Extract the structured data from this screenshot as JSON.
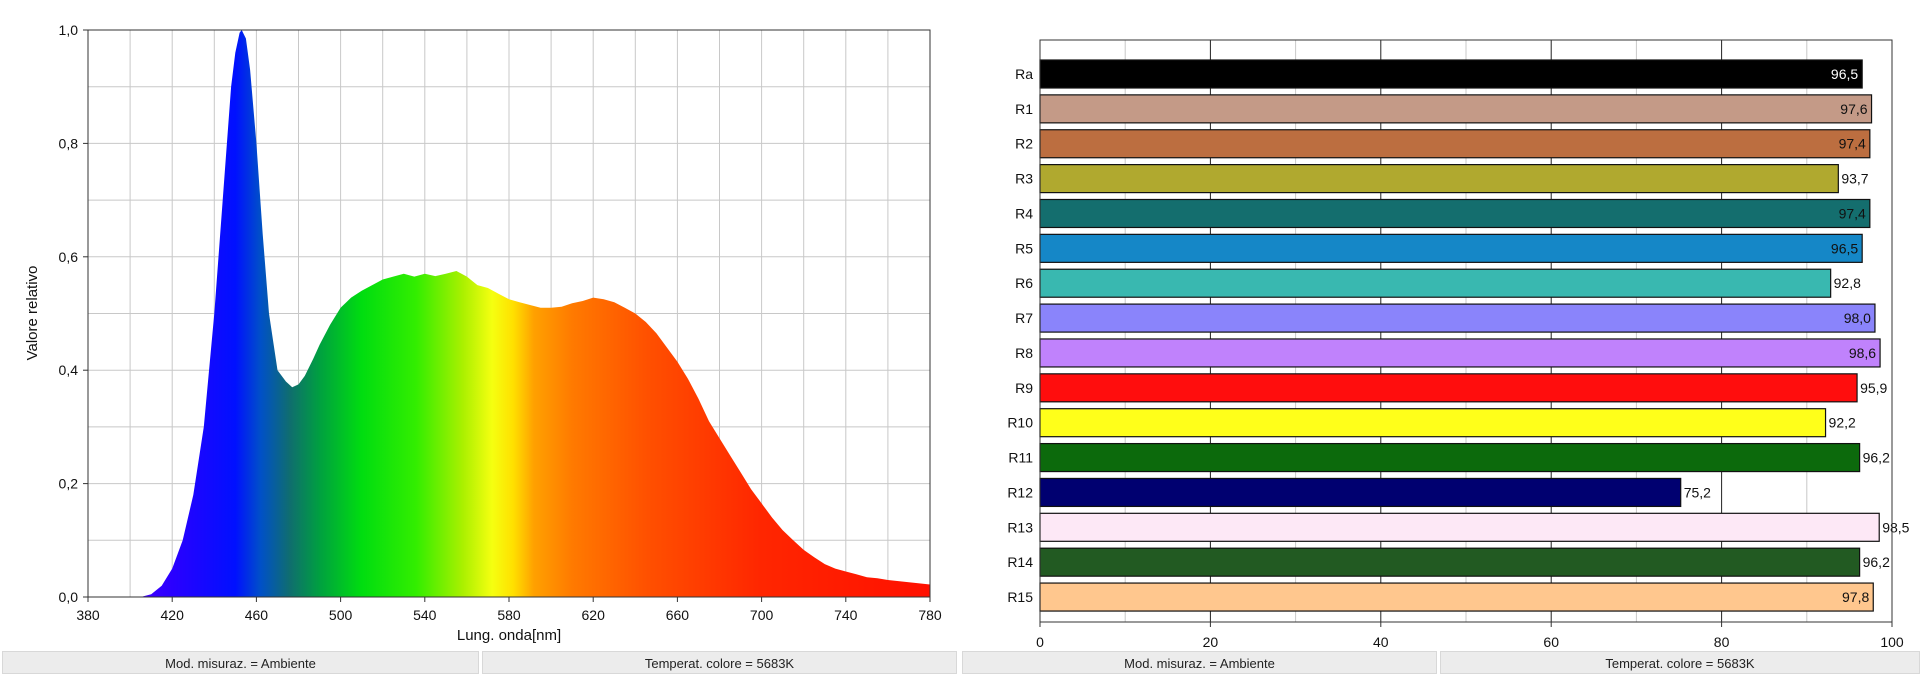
{
  "chart_data": [
    {
      "type": "area",
      "xlabel": "Lung. onda[nm]",
      "ylabel": "Valore relativo",
      "xlim": [
        380,
        780
      ],
      "ylim": [
        0,
        1.0
      ],
      "x_ticks": [
        "380",
        "420",
        "460",
        "500",
        "540",
        "580",
        "620",
        "660",
        "700",
        "740",
        "780"
      ],
      "y_ticks": [
        "0,0",
        "0,2",
        "0,4",
        "0,6",
        "0,8",
        "1,0"
      ],
      "grid": true,
      "fill": "visible-spectrum colors",
      "x": [
        380,
        405,
        410,
        415,
        420,
        425,
        430,
        435,
        440,
        445,
        448,
        450,
        452,
        453,
        455,
        457,
        460,
        463,
        466,
        470,
        474,
        477,
        480,
        483,
        487,
        490,
        495,
        500,
        505,
        510,
        515,
        520,
        525,
        530,
        535,
        540,
        545,
        550,
        555,
        560,
        565,
        570,
        575,
        580,
        585,
        590,
        595,
        600,
        605,
        610,
        615,
        620,
        625,
        630,
        635,
        640,
        645,
        650,
        655,
        660,
        665,
        670,
        675,
        680,
        685,
        690,
        695,
        700,
        705,
        710,
        715,
        720,
        725,
        730,
        735,
        740,
        745,
        750,
        755,
        760,
        765,
        770,
        775,
        780
      ],
      "y": [
        0.0,
        0.0,
        0.005,
        0.02,
        0.05,
        0.1,
        0.18,
        0.3,
        0.5,
        0.75,
        0.9,
        0.96,
        0.995,
        1.0,
        0.985,
        0.93,
        0.8,
        0.64,
        0.5,
        0.4,
        0.38,
        0.37,
        0.375,
        0.39,
        0.42,
        0.445,
        0.48,
        0.51,
        0.528,
        0.54,
        0.55,
        0.56,
        0.565,
        0.57,
        0.565,
        0.57,
        0.566,
        0.57,
        0.575,
        0.565,
        0.55,
        0.545,
        0.535,
        0.525,
        0.52,
        0.515,
        0.51,
        0.51,
        0.512,
        0.518,
        0.522,
        0.528,
        0.525,
        0.52,
        0.51,
        0.5,
        0.485,
        0.465,
        0.44,
        0.415,
        0.385,
        0.35,
        0.31,
        0.28,
        0.25,
        0.22,
        0.19,
        0.165,
        0.14,
        0.118,
        0.1,
        0.083,
        0.07,
        0.058,
        0.05,
        0.045,
        0.04,
        0.035,
        0.033,
        0.03,
        0.028,
        0.026,
        0.024,
        0.022
      ]
    },
    {
      "type": "bar",
      "orientation": "horizontal",
      "xlim": [
        0,
        100
      ],
      "x_ticks": [
        "0",
        "20",
        "40",
        "60",
        "80",
        "100"
      ],
      "grid": true,
      "categories": [
        "Ra",
        "R1",
        "R2",
        "R3",
        "R4",
        "R5",
        "R6",
        "R7",
        "R8",
        "R9",
        "R10",
        "R11",
        "R12",
        "R13",
        "R14",
        "R15"
      ],
      "values": [
        96.5,
        97.6,
        97.4,
        93.7,
        97.4,
        96.5,
        92.8,
        98.0,
        98.6,
        95.9,
        92.2,
        96.2,
        75.2,
        98.5,
        96.2,
        97.8
      ],
      "value_labels": [
        "96,5",
        "97,6",
        "97,4",
        "93,7",
        "97,4",
        "96,5",
        "92,8",
        "98,0",
        "98,6",
        "95,9",
        "92,2",
        "96,2",
        "75,2",
        "98,5",
        "96,2",
        "97,8"
      ],
      "colors": [
        "#000000",
        "#c49a87",
        "#bc6e40",
        "#b0a92f",
        "#146e6e",
        "#1587c7",
        "#39b8b0",
        "#8a84fb",
        "#c082fc",
        "#ff0d0d",
        "#ffff1a",
        "#0c6a0c",
        "#000070",
        "#fde8f6",
        "#225a22",
        "#ffc78e"
      ],
      "label_colors": [
        "#ffffff",
        "#111111",
        "#111111",
        "#111111",
        "#111111",
        "#111111",
        "#111111",
        "#111111",
        "#111111",
        "#111111",
        "#111111",
        "#111111",
        "#111111",
        "#111111",
        "#111111",
        "#111111"
      ],
      "label_inside": [
        true,
        true,
        true,
        false,
        true,
        true,
        false,
        true,
        true,
        false,
        false,
        false,
        false,
        false,
        false,
        true
      ]
    }
  ],
  "status": {
    "left_mode": "Mod. misuraz. = Ambiente",
    "left_temp": "Temperat. colore = 5683K",
    "right_mode": "Mod. misuraz. = Ambiente",
    "right_temp": "Temperat. colore = 5683K"
  }
}
